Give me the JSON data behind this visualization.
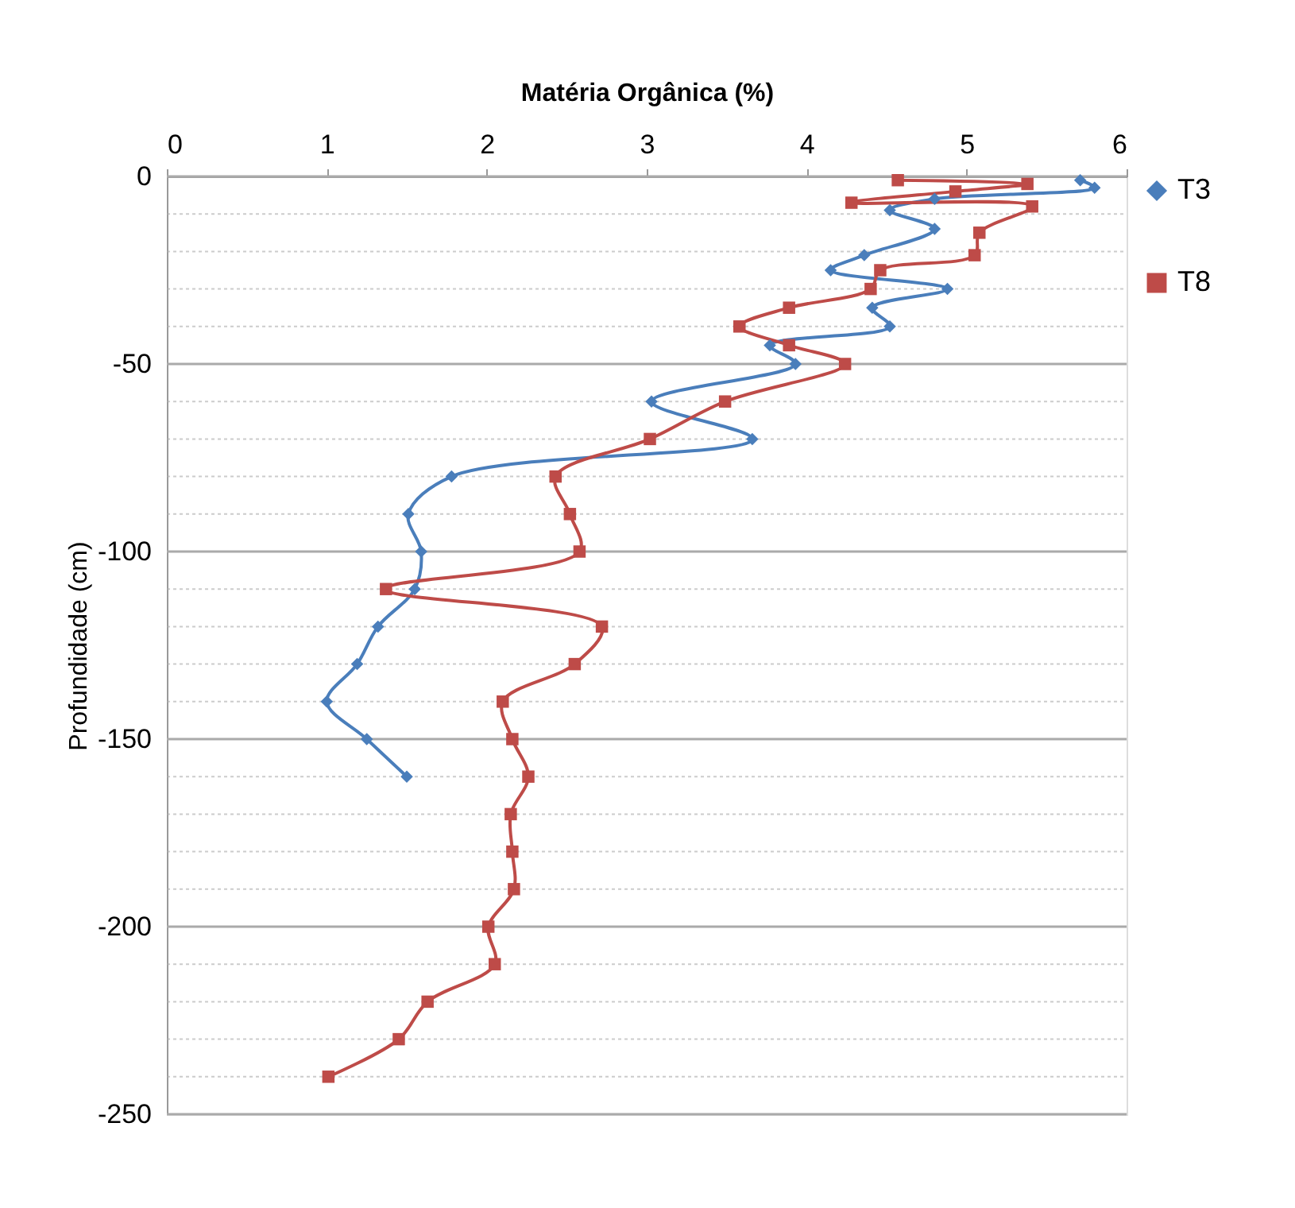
{
  "chart_data": {
    "type": "line",
    "xlabel": "Matéria Orgânica (%)",
    "ylabel": "Profundidade (cm)",
    "xlim": [
      0,
      6
    ],
    "xticks": [
      0,
      1,
      2,
      3,
      4,
      5,
      6
    ],
    "ylim": [
      -250,
      0
    ],
    "yticks": [
      0,
      {
        "value": -10,
        "label": null
      },
      {
        "value": -20,
        "label": null
      },
      {
        "value": -30,
        "label": null
      },
      {
        "value": -40,
        "label": null
      },
      -50,
      {
        "value": -60,
        "label": null
      },
      {
        "value": -70,
        "label": null
      },
      {
        "value": -80,
        "label": null
      },
      {
        "value": -90,
        "label": null
      },
      -100,
      {
        "value": -110,
        "label": null
      },
      {
        "value": -120,
        "label": null
      },
      {
        "value": -130,
        "label": null
      },
      {
        "value": -140,
        "label": null
      },
      -150,
      {
        "value": -160,
        "label": null
      },
      {
        "value": -170,
        "label": null
      },
      {
        "value": -180,
        "label": null
      },
      {
        "value": -190,
        "label": null
      },
      -200,
      {
        "value": -210,
        "label": null
      },
      {
        "value": -220,
        "label": null
      },
      {
        "value": -230,
        "label": null
      },
      {
        "value": -240,
        "label": null
      },
      -250
    ],
    "grid": "y",
    "legend": "right",
    "series": [
      {
        "name": "T3",
        "color": "#4a7ebb",
        "marker": "diamond",
        "x": [
          5.71,
          5.8,
          4.8,
          4.52,
          4.8,
          4.36,
          4.15,
          4.88,
          4.41,
          4.52,
          3.77,
          3.93,
          3.03,
          3.66,
          1.78,
          1.51,
          1.59,
          1.55,
          1.32,
          1.19,
          1.0,
          1.25,
          1.5
        ],
        "values": [
          -1,
          -3,
          -6,
          -9,
          -14,
          -21,
          -25,
          -30,
          -35,
          -40,
          -45,
          -50,
          -60,
          -70,
          -80,
          -90,
          -100,
          -110,
          -120,
          -130,
          -140,
          -150,
          -160
        ]
      },
      {
        "name": "T8",
        "color": "#be4b48",
        "marker": "square",
        "x": [
          4.57,
          5.38,
          4.93,
          4.28,
          5.41,
          5.08,
          5.05,
          4.46,
          4.4,
          3.89,
          3.58,
          3.89,
          4.24,
          3.49,
          3.02,
          2.43,
          2.52,
          2.58,
          1.37,
          2.72,
          2.55,
          2.1,
          2.16,
          2.26,
          2.15,
          2.16,
          2.17,
          2.01,
          2.05,
          1.63,
          1.45,
          1.01
        ],
        "values": [
          -1,
          -2,
          -4,
          -7,
          -8,
          -15,
          -21,
          -25,
          -30,
          -35,
          -40,
          -45,
          -50,
          -60,
          -70,
          -80,
          -90,
          -100,
          -110,
          -120,
          -130,
          -140,
          -150,
          -160,
          -170,
          -180,
          -190,
          -200,
          -210,
          -220,
          -230,
          -240
        ]
      }
    ]
  }
}
